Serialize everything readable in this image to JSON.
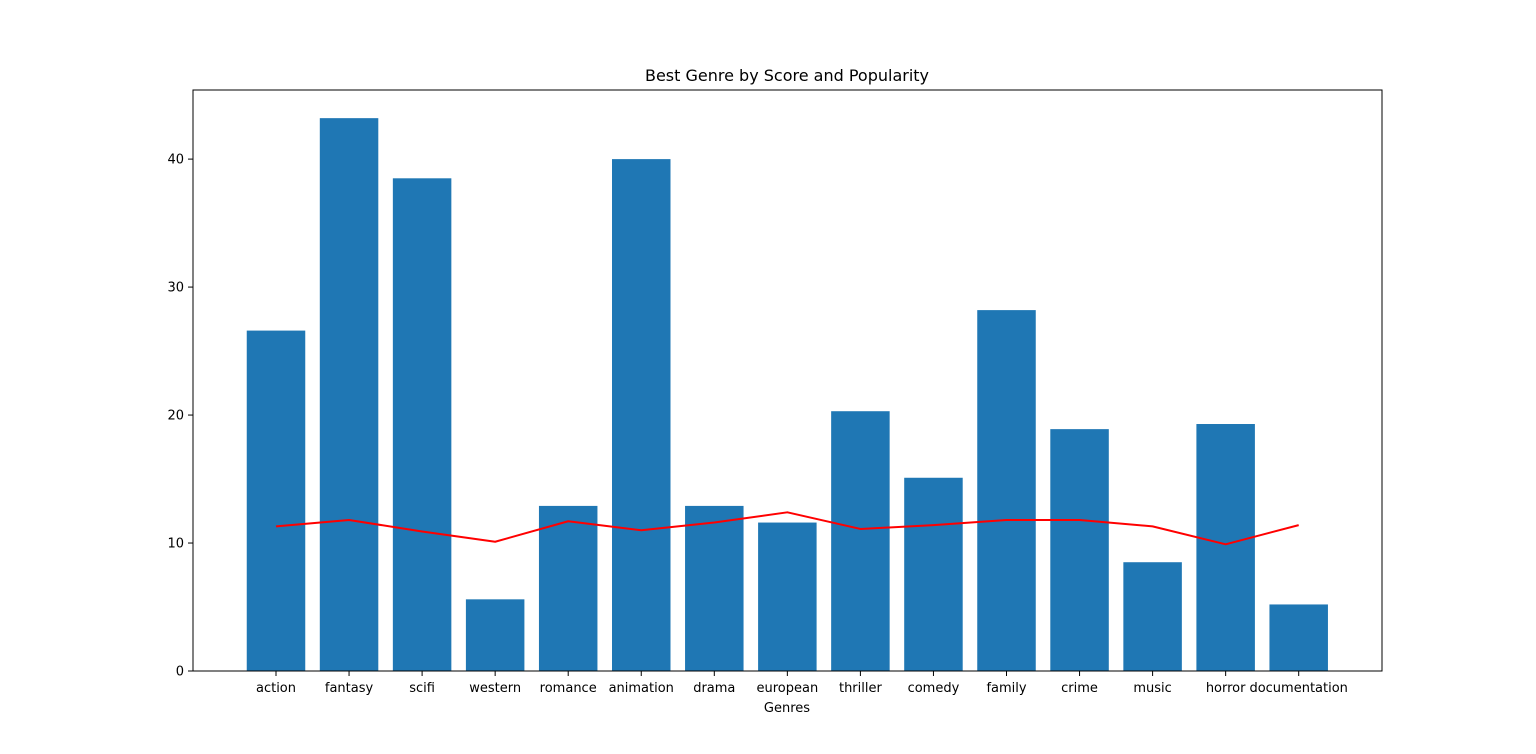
{
  "chart_data": {
    "type": "bar",
    "title": "Best Genre by Score and Popularity",
    "xlabel": "Genres",
    "ylabel": "",
    "categories": [
      "action",
      "fantasy",
      "scifi",
      "western",
      "romance",
      "animation",
      "drama",
      "european",
      "thriller",
      "comedy",
      "family",
      "crime",
      "music",
      "horror",
      "documentation"
    ],
    "series": [
      {
        "type": "bar",
        "color": "#1f77b4",
        "values": [
          26.6,
          43.2,
          38.5,
          5.6,
          12.9,
          40.0,
          12.9,
          11.6,
          20.3,
          15.1,
          28.2,
          18.9,
          8.5,
          19.3,
          5.2
        ]
      },
      {
        "type": "line",
        "color": "#ff0000",
        "values": [
          11.3,
          11.8,
          10.9,
          10.1,
          11.7,
          11.0,
          11.6,
          12.4,
          11.1,
          11.4,
          11.8,
          11.8,
          11.3,
          9.9,
          11.4
        ]
      }
    ],
    "ylim": [
      0,
      45.4
    ],
    "yticks": [
      0,
      10,
      20,
      30,
      40
    ],
    "grid": false,
    "legend": "none"
  }
}
